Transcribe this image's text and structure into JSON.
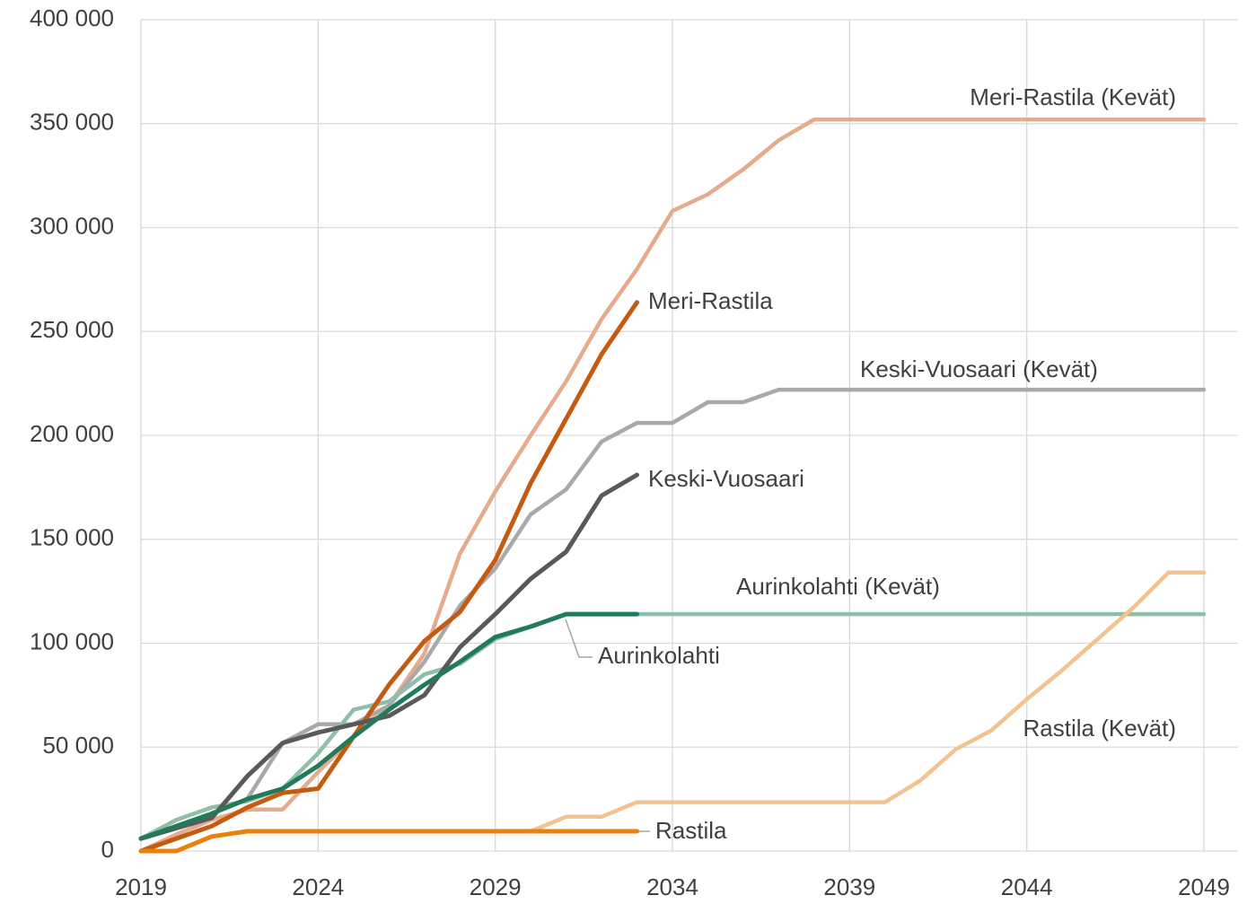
{
  "chart_data": {
    "type": "line",
    "x": [
      2019,
      2020,
      2021,
      2022,
      2023,
      2024,
      2025,
      2026,
      2027,
      2028,
      2029,
      2030,
      2031,
      2032,
      2033,
      2034,
      2035,
      2036,
      2037,
      2038,
      2039,
      2040,
      2041,
      2042,
      2043,
      2044,
      2045,
      2046,
      2047,
      2048,
      2049
    ],
    "xlim": [
      2019,
      2049
    ],
    "xticks": [
      2019,
      2024,
      2029,
      2034,
      2039,
      2044,
      2049
    ],
    "ylim": [
      0,
      400000
    ],
    "yticks": [
      {
        "value": 0,
        "label": "0"
      },
      {
        "value": 50000,
        "label": "50 000"
      },
      {
        "value": 100000,
        "label": "100 000"
      },
      {
        "value": 150000,
        "label": "150 000"
      },
      {
        "value": 200000,
        "label": "200 000"
      },
      {
        "value": 250000,
        "label": "250 000"
      },
      {
        "value": 300000,
        "label": "300 000"
      },
      {
        "value": 350000,
        "label": "350 000"
      },
      {
        "value": 400000,
        "label": "400 000"
      }
    ],
    "grid": true,
    "series": [
      {
        "name": "Meri-Rastila (Kevät)",
        "color": "#e6ab8c",
        "values": [
          0,
          8000,
          15000,
          20000,
          20000,
          38000,
          55000,
          70000,
          95000,
          143000,
          173000,
          200000,
          226000,
          256000,
          280000,
          308000,
          316000,
          328000,
          342000,
          352000,
          352000,
          352000,
          352000,
          352000,
          352000,
          352000,
          352000,
          352000,
          352000,
          352000,
          352000
        ]
      },
      {
        "name": "Keski-Vuosaari (Kevät)",
        "color": "#a9a9a9",
        "values": [
          6000,
          12000,
          18000,
          25000,
          52000,
          61000,
          61000,
          70000,
          91000,
          118000,
          136000,
          162000,
          174000,
          197000,
          206000,
          206000,
          216000,
          216000,
          222000,
          222000,
          222000,
          222000,
          222000,
          222000,
          222000,
          222000,
          222000,
          222000,
          222000,
          222000,
          222000
        ]
      },
      {
        "name": "Aurinkolahti (Kevät)",
        "color": "#8fbfa8",
        "values": [
          6000,
          15000,
          21000,
          24000,
          30000,
          47000,
          68000,
          72000,
          85000,
          90000,
          102000,
          108000,
          114000,
          114000,
          114000,
          114000,
          114000,
          114000,
          114000,
          114000,
          114000,
          114000,
          114000,
          114000,
          114000,
          114000,
          114000,
          114000,
          114000,
          114000,
          114000
        ]
      },
      {
        "name": "Rastila (Kevät)",
        "color": "#f4c28e",
        "values": [
          0,
          0,
          7000,
          9500,
          9500,
          9500,
          9500,
          9500,
          9500,
          9500,
          9500,
          9500,
          16500,
          16500,
          23500,
          23500,
          23500,
          23500,
          23500,
          23500,
          23500,
          23500,
          34000,
          49000,
          58000,
          73000,
          87000,
          102000,
          117000,
          134000,
          134000
        ]
      },
      {
        "name": "Meri-Rastila",
        "color": "#c55a11",
        "values": [
          0,
          6000,
          12000,
          21000,
          28000,
          30000,
          55000,
          80000,
          101000,
          115000,
          140000,
          177000,
          208000,
          239000,
          264000,
          null,
          null,
          null,
          null,
          null,
          null,
          null,
          null,
          null,
          null,
          null,
          null,
          null,
          null,
          null,
          null
        ]
      },
      {
        "name": "Keski-Vuosaari",
        "color": "#595959",
        "values": [
          6000,
          11000,
          16000,
          36000,
          52000,
          57000,
          61000,
          65000,
          75000,
          98000,
          114000,
          131000,
          144000,
          171000,
          181000,
          null,
          null,
          null,
          null,
          null,
          null,
          null,
          null,
          null,
          null,
          null,
          null,
          null,
          null,
          null,
          null
        ]
      },
      {
        "name": "Aurinkolahti",
        "color": "#217a5a",
        "values": [
          6000,
          12000,
          18000,
          25000,
          30000,
          41000,
          55000,
          68000,
          80000,
          91000,
          103000,
          108000,
          114000,
          114000,
          114000,
          null,
          null,
          null,
          null,
          null,
          null,
          null,
          null,
          null,
          null,
          null,
          null,
          null,
          null,
          null,
          null
        ]
      },
      {
        "name": "Rastila",
        "color": "#e8820c",
        "values": [
          0,
          0,
          7000,
          9500,
          9500,
          9500,
          9500,
          9500,
          9500,
          9500,
          9500,
          9500,
          9500,
          9500,
          9500,
          null,
          null,
          null,
          null,
          null,
          null,
          null,
          null,
          null,
          null,
          null,
          null,
          null,
          null,
          null,
          null
        ]
      }
    ]
  }
}
